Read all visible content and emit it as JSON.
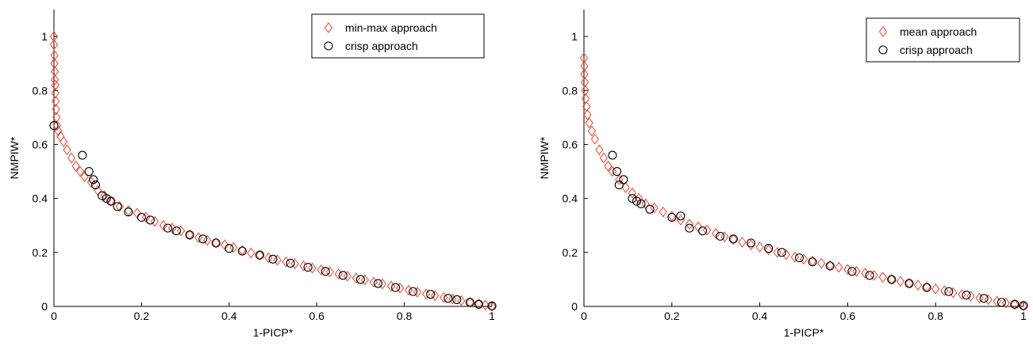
{
  "chart_data": [
    {
      "type": "scatter",
      "title": "",
      "xlabel": "1-PICP*",
      "ylabel": "NMPIW*",
      "xlim": [
        0,
        1
      ],
      "ylim": [
        0,
        1.1
      ],
      "xticks": [
        "0",
        "0.2",
        "0.4",
        "0.6",
        "0.8",
        "1"
      ],
      "yticks": [
        "0",
        "0.2",
        "0.4",
        "0.6",
        "0.8",
        "1"
      ],
      "grid": false,
      "legend_position": "top-right",
      "series": [
        {
          "name": "min-max approach",
          "marker": "diamond",
          "color": "#e8412c",
          "points": [
            [
              0.0,
              1.0
            ],
            [
              0.0,
              0.97
            ],
            [
              0.001,
              0.93
            ],
            [
              0.001,
              0.9
            ],
            [
              0.002,
              0.87
            ],
            [
              0.002,
              0.84
            ],
            [
              0.003,
              0.82
            ],
            [
              0.003,
              0.79
            ],
            [
              0.004,
              0.76
            ],
            [
              0.005,
              0.73
            ],
            [
              0.006,
              0.7
            ],
            [
              0.007,
              0.67
            ],
            [
              0.01,
              0.65
            ],
            [
              0.015,
              0.63
            ],
            [
              0.022,
              0.61
            ],
            [
              0.03,
              0.58
            ],
            [
              0.04,
              0.55
            ],
            [
              0.05,
              0.52
            ],
            [
              0.06,
              0.5
            ],
            [
              0.07,
              0.48
            ],
            [
              0.085,
              0.46
            ],
            [
              0.1,
              0.43
            ],
            [
              0.115,
              0.41
            ],
            [
              0.13,
              0.39
            ],
            [
              0.15,
              0.37
            ],
            [
              0.17,
              0.355
            ],
            [
              0.19,
              0.345
            ],
            [
              0.21,
              0.33
            ],
            [
              0.23,
              0.315
            ],
            [
              0.25,
              0.3
            ],
            [
              0.27,
              0.29
            ],
            [
              0.29,
              0.28
            ],
            [
              0.31,
              0.265
            ],
            [
              0.33,
              0.255
            ],
            [
              0.35,
              0.245
            ],
            [
              0.37,
              0.235
            ],
            [
              0.39,
              0.228
            ],
            [
              0.41,
              0.218
            ],
            [
              0.43,
              0.208
            ],
            [
              0.45,
              0.198
            ],
            [
              0.47,
              0.19
            ],
            [
              0.49,
              0.18
            ],
            [
              0.51,
              0.172
            ],
            [
              0.53,
              0.165
            ],
            [
              0.55,
              0.158
            ],
            [
              0.57,
              0.15
            ],
            [
              0.59,
              0.142
            ],
            [
              0.61,
              0.135
            ],
            [
              0.63,
              0.128
            ],
            [
              0.65,
              0.12
            ],
            [
              0.67,
              0.112
            ],
            [
              0.69,
              0.105
            ],
            [
              0.71,
              0.098
            ],
            [
              0.73,
              0.09
            ],
            [
              0.75,
              0.083
            ],
            [
              0.77,
              0.075
            ],
            [
              0.79,
              0.068
            ],
            [
              0.81,
              0.06
            ],
            [
              0.83,
              0.053
            ],
            [
              0.85,
              0.046
            ],
            [
              0.87,
              0.04
            ],
            [
              0.89,
              0.033
            ],
            [
              0.91,
              0.027
            ],
            [
              0.93,
              0.021
            ],
            [
              0.95,
              0.015
            ],
            [
              0.97,
              0.009
            ],
            [
              0.985,
              0.005
            ],
            [
              1.0,
              0.001
            ]
          ]
        },
        {
          "name": "crisp approach",
          "marker": "circle",
          "color": "#000000",
          "points": [
            [
              0.0,
              0.67
            ],
            [
              0.065,
              0.56
            ],
            [
              0.08,
              0.5
            ],
            [
              0.09,
              0.47
            ],
            [
              0.095,
              0.45
            ],
            [
              0.11,
              0.41
            ],
            [
              0.12,
              0.4
            ],
            [
              0.13,
              0.39
            ],
            [
              0.145,
              0.37
            ],
            [
              0.17,
              0.35
            ],
            [
              0.2,
              0.33
            ],
            [
              0.22,
              0.32
            ],
            [
              0.26,
              0.29
            ],
            [
              0.28,
              0.28
            ],
            [
              0.31,
              0.265
            ],
            [
              0.34,
              0.25
            ],
            [
              0.37,
              0.235
            ],
            [
              0.4,
              0.215
            ],
            [
              0.43,
              0.205
            ],
            [
              0.47,
              0.19
            ],
            [
              0.5,
              0.175
            ],
            [
              0.54,
              0.16
            ],
            [
              0.58,
              0.145
            ],
            [
              0.62,
              0.13
            ],
            [
              0.66,
              0.115
            ],
            [
              0.7,
              0.1
            ],
            [
              0.74,
              0.085
            ],
            [
              0.78,
              0.07
            ],
            [
              0.82,
              0.055
            ],
            [
              0.86,
              0.045
            ],
            [
              0.9,
              0.03
            ],
            [
              0.92,
              0.025
            ],
            [
              0.95,
              0.015
            ],
            [
              0.97,
              0.008
            ],
            [
              1.0,
              0.002
            ]
          ]
        }
      ]
    },
    {
      "type": "scatter",
      "title": "",
      "xlabel": "1-PICP*",
      "ylabel": "NMPIW*",
      "xlim": [
        0,
        1
      ],
      "ylim": [
        0,
        1.1
      ],
      "xticks": [
        "0",
        "0.2",
        "0.4",
        "0.6",
        "0.8",
        "1"
      ],
      "yticks": [
        "0",
        "0.2",
        "0.4",
        "0.6",
        "0.8",
        "1"
      ],
      "grid": false,
      "legend_position": "top-right",
      "series": [
        {
          "name": "mean approach",
          "marker": "diamond",
          "color": "#e8412c",
          "points": [
            [
              0.0,
              0.92
            ],
            [
              0.001,
              0.89
            ],
            [
              0.001,
              0.86
            ],
            [
              0.002,
              0.83
            ],
            [
              0.003,
              0.8
            ],
            [
              0.004,
              0.77
            ],
            [
              0.006,
              0.74
            ],
            [
              0.008,
              0.71
            ],
            [
              0.012,
              0.68
            ],
            [
              0.018,
              0.65
            ],
            [
              0.025,
              0.62
            ],
            [
              0.035,
              0.58
            ],
            [
              0.045,
              0.55
            ],
            [
              0.055,
              0.52
            ],
            [
              0.065,
              0.5
            ],
            [
              0.08,
              0.47
            ],
            [
              0.095,
              0.44
            ],
            [
              0.11,
              0.42
            ],
            [
              0.125,
              0.4
            ],
            [
              0.14,
              0.38
            ],
            [
              0.16,
              0.365
            ],
            [
              0.18,
              0.35
            ],
            [
              0.2,
              0.335
            ],
            [
              0.22,
              0.32
            ],
            [
              0.24,
              0.305
            ],
            [
              0.26,
              0.295
            ],
            [
              0.28,
              0.283
            ],
            [
              0.3,
              0.27
            ],
            [
              0.32,
              0.258
            ],
            [
              0.34,
              0.248
            ],
            [
              0.36,
              0.238
            ],
            [
              0.38,
              0.228
            ],
            [
              0.4,
              0.22
            ],
            [
              0.42,
              0.21
            ],
            [
              0.44,
              0.2
            ],
            [
              0.46,
              0.192
            ],
            [
              0.48,
              0.183
            ],
            [
              0.5,
              0.175
            ],
            [
              0.52,
              0.168
            ],
            [
              0.54,
              0.16
            ],
            [
              0.56,
              0.152
            ],
            [
              0.58,
              0.145
            ],
            [
              0.6,
              0.137
            ],
            [
              0.62,
              0.13
            ],
            [
              0.64,
              0.123
            ],
            [
              0.66,
              0.115
            ],
            [
              0.68,
              0.108
            ],
            [
              0.7,
              0.1
            ],
            [
              0.72,
              0.093
            ],
            [
              0.74,
              0.086
            ],
            [
              0.76,
              0.079
            ],
            [
              0.78,
              0.072
            ],
            [
              0.8,
              0.065
            ],
            [
              0.82,
              0.058
            ],
            [
              0.84,
              0.051
            ],
            [
              0.86,
              0.044
            ],
            [
              0.88,
              0.038
            ],
            [
              0.9,
              0.031
            ],
            [
              0.92,
              0.025
            ],
            [
              0.94,
              0.019
            ],
            [
              0.96,
              0.013
            ],
            [
              0.98,
              0.007
            ],
            [
              1.0,
              0.002
            ]
          ]
        },
        {
          "name": "crisp approach",
          "marker": "circle",
          "color": "#000000",
          "points": [
            [
              0.065,
              0.56
            ],
            [
              0.075,
              0.5
            ],
            [
              0.08,
              0.45
            ],
            [
              0.09,
              0.47
            ],
            [
              0.11,
              0.4
            ],
            [
              0.12,
              0.39
            ],
            [
              0.13,
              0.38
            ],
            [
              0.15,
              0.36
            ],
            [
              0.2,
              0.33
            ],
            [
              0.22,
              0.335
            ],
            [
              0.24,
              0.29
            ],
            [
              0.27,
              0.28
            ],
            [
              0.31,
              0.26
            ],
            [
              0.34,
              0.25
            ],
            [
              0.38,
              0.235
            ],
            [
              0.42,
              0.215
            ],
            [
              0.45,
              0.2
            ],
            [
              0.49,
              0.18
            ],
            [
              0.52,
              0.165
            ],
            [
              0.56,
              0.15
            ],
            [
              0.61,
              0.13
            ],
            [
              0.65,
              0.115
            ],
            [
              0.7,
              0.1
            ],
            [
              0.74,
              0.085
            ],
            [
              0.78,
              0.07
            ],
            [
              0.83,
              0.055
            ],
            [
              0.87,
              0.042
            ],
            [
              0.91,
              0.03
            ],
            [
              0.95,
              0.015
            ],
            [
              0.98,
              0.008
            ],
            [
              1.0,
              0.003
            ]
          ]
        }
      ]
    }
  ]
}
